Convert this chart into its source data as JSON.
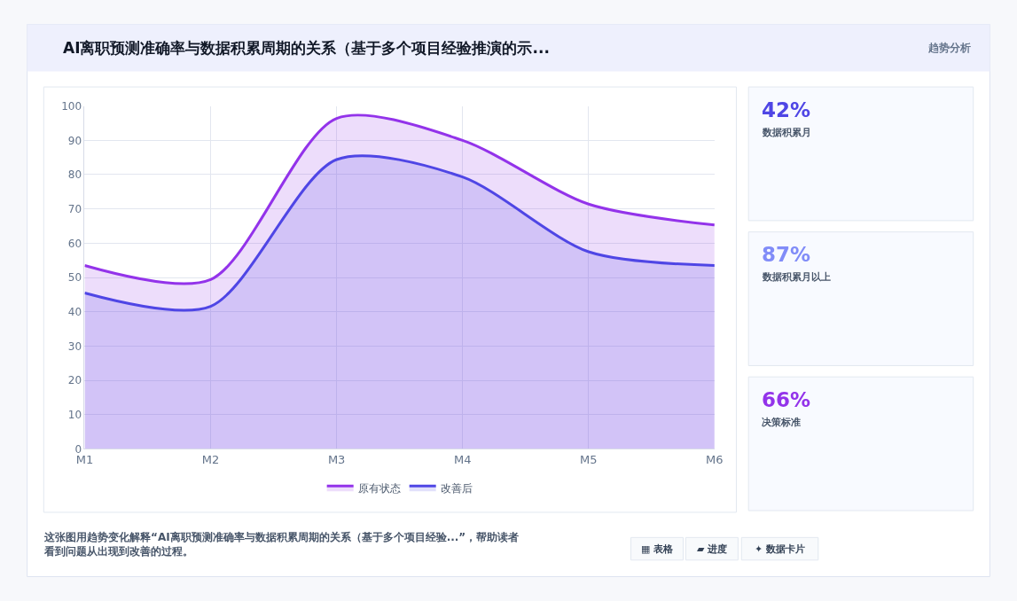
{
  "chart_data": [
    {
      "type": "area",
      "title": "AI离职预测准确率与数据积累周期的关系（基于多个项目经验推演的示...",
      "categories": [
        "M1",
        "M2",
        "M3",
        "M4",
        "M5",
        "M6"
      ],
      "series": [
        {
          "name": "原有状态",
          "color": "#9333ea",
          "values": [
            53.5,
            49.4,
            96.4,
            90,
            71.4,
            65.3
          ]
        },
        {
          "name": "改善后",
          "color": "#4f46e5",
          "values": [
            45.5,
            41.6,
            84.4,
            79.3,
            57.5,
            53.5
          ]
        }
      ],
      "ylim": [
        0,
        100
      ],
      "yticks": [
        0,
        10,
        20,
        30,
        40,
        50,
        60,
        70,
        80,
        90,
        100
      ],
      "grid": true,
      "legend": "bottom",
      "annotations": [
        "这张图用趋势变化解释“AI离职预测准确率与数据积累周期的关系（基于多个项目经验...”，帮助读者看到问题从出现到改善的过程。",
        "▦ 表格",
        "▰ 进度",
        "✦ 数据卡片"
      ]
    },
    {
      "type": "other",
      "title": "42%",
      "subtitle": "数据积累月",
      "color": "#4f46e5"
    },
    {
      "type": "other",
      "title": "87%",
      "subtitle": "数据积累月以上",
      "color": "#818cf8"
    },
    {
      "type": "other",
      "title": "66%",
      "subtitle": "决策标准",
      "color": "#9333ea"
    },
    {
      "type": "other",
      "title": "趋势分析"
    }
  ]
}
